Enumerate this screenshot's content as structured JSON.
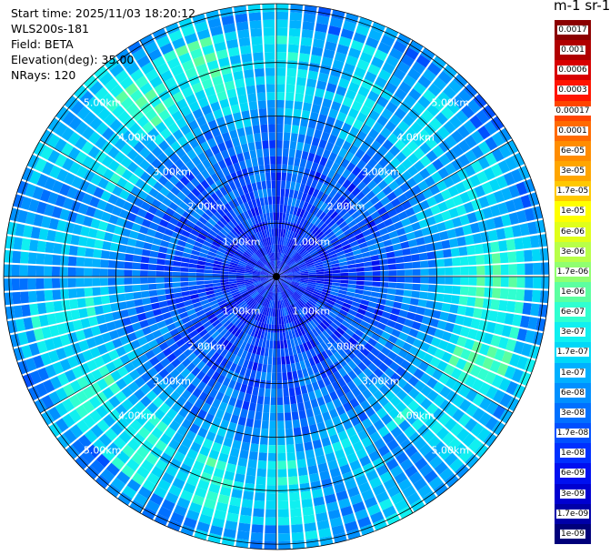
{
  "info": {
    "start_time": "Start time: 2025/11/03 18:20:12",
    "device": "WLS200s-181",
    "field": "Field: BETA",
    "elevation": "Elevation(deg): 35.00",
    "nrays": "NRays: 120"
  },
  "colorbar": {
    "units_label": "m-1 sr-1",
    "levels": [
      {
        "label": "0.0017",
        "color": "#8b0000"
      },
      {
        "label": "0.001",
        "color": "#b00000"
      },
      {
        "label": "0.0006",
        "color": "#d80000"
      },
      {
        "label": "0.0003",
        "color": "#ff1500"
      },
      {
        "label": "0.00017",
        "color": "#ff4500"
      },
      {
        "label": "0.0001",
        "color": "#ff6a00"
      },
      {
        "label": "6e-05",
        "color": "#ff8c00"
      },
      {
        "label": "3e-05",
        "color": "#ffa500"
      },
      {
        "label": "1.7e-05",
        "color": "#ffc800"
      },
      {
        "label": "1e-05",
        "color": "#ffff00"
      },
      {
        "label": "6e-06",
        "color": "#e0ff1a"
      },
      {
        "label": "3e-06",
        "color": "#b8ff48"
      },
      {
        "label": "1.7e-06",
        "color": "#90ff70"
      },
      {
        "label": "1e-06",
        "color": "#5cffa0"
      },
      {
        "label": "6e-07",
        "color": "#30ffd0"
      },
      {
        "label": "3e-07",
        "color": "#10f0f0"
      },
      {
        "label": "1.7e-07",
        "color": "#00d8f8"
      },
      {
        "label": "1e-07",
        "color": "#00b0ff"
      },
      {
        "label": "6e-08",
        "color": "#0090ff"
      },
      {
        "label": "3e-08",
        "color": "#0070ff"
      },
      {
        "label": "1.7e-08",
        "color": "#0050ff"
      },
      {
        "label": "1e-08",
        "color": "#0030ff"
      },
      {
        "label": "6e-09",
        "color": "#0010f0"
      },
      {
        "label": "3e-09",
        "color": "#0000d0"
      },
      {
        "label": "1.7e-09",
        "color": "#0000a8"
      },
      {
        "label": "1e-09",
        "color": "#00007a"
      }
    ]
  },
  "range_rings": [
    {
      "km": 1,
      "label": "1.00km"
    },
    {
      "km": 2,
      "label": "2.00km"
    },
    {
      "km": 3,
      "label": "3.00km"
    },
    {
      "km": 4,
      "label": "4.00km"
    },
    {
      "km": 5,
      "label": "5.00km"
    }
  ],
  "max_range_km": 5.1,
  "n_rays": 120
}
